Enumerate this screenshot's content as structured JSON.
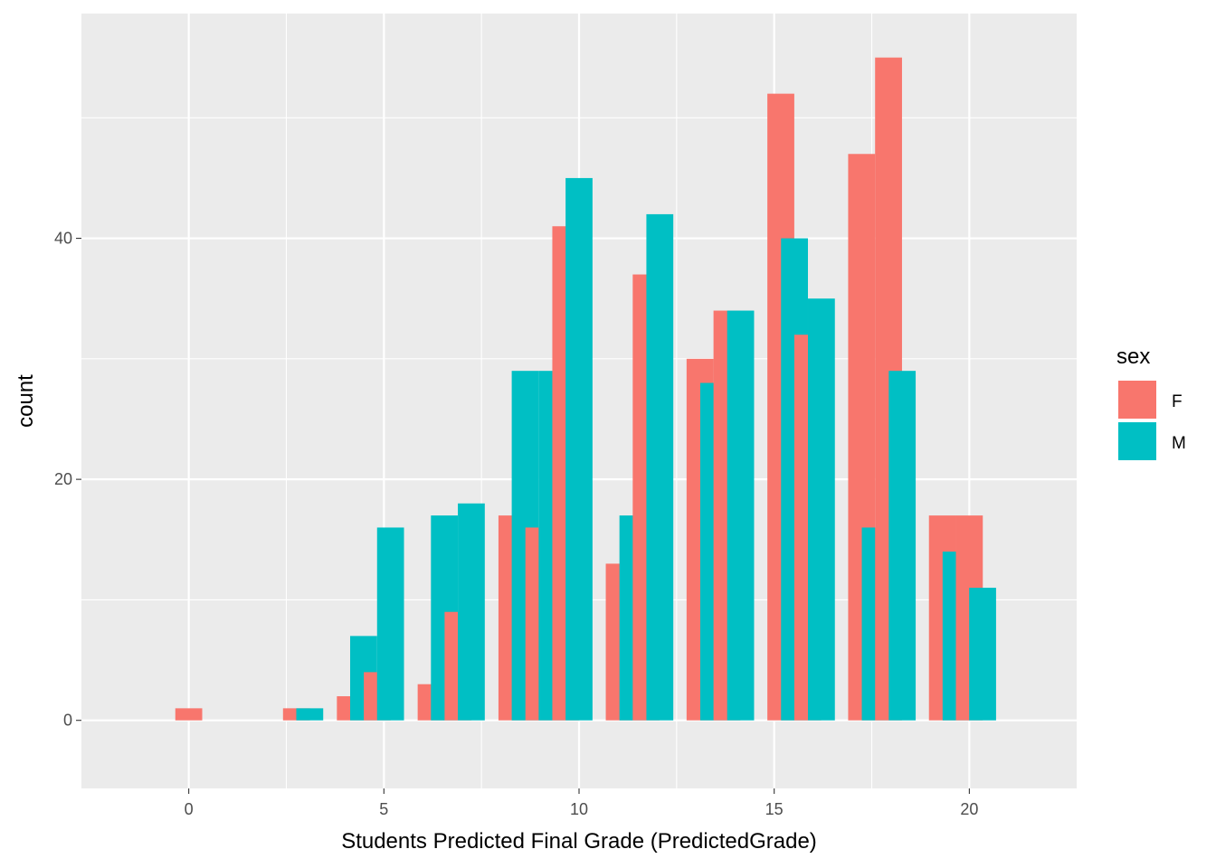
{
  "chart_data": {
    "type": "bar",
    "xlabel": "Students Predicted Final Grade (PredictedGrade)",
    "ylabel": "count",
    "xlim": [
      -2.75,
      22.75
    ],
    "ylim": [
      -5.65,
      58.65
    ],
    "x_ticks": [
      0,
      5,
      10,
      15,
      20
    ],
    "y_ticks": [
      0,
      20,
      40
    ],
    "grid": true,
    "legend": {
      "title": "sex",
      "position": "right",
      "entries": [
        "F",
        "M"
      ]
    },
    "colors": {
      "F": "#F8766D",
      "M": "#00BFC4",
      "panel": "#EBEBEB",
      "grid": "#FFFFFF"
    },
    "bar_width": 0.6897,
    "bars": [
      {
        "x": 0.0,
        "sex": "F",
        "count": 1
      },
      {
        "x": 2.76,
        "sex": "F",
        "count": 1
      },
      {
        "x": 3.1,
        "sex": "M",
        "count": 1
      },
      {
        "x": 4.14,
        "sex": "F",
        "count": 2
      },
      {
        "x": 4.48,
        "sex": "M",
        "count": 7
      },
      {
        "x": 4.83,
        "sex": "F",
        "count": 4
      },
      {
        "x": 5.17,
        "sex": "M",
        "count": 16
      },
      {
        "x": 6.21,
        "sex": "F",
        "count": 3
      },
      {
        "x": 6.55,
        "sex": "M",
        "count": 17
      },
      {
        "x": 6.9,
        "sex": "F",
        "count": 9
      },
      {
        "x": 7.24,
        "sex": "M",
        "count": 18
      },
      {
        "x": 8.28,
        "sex": "F",
        "count": 17
      },
      {
        "x": 8.62,
        "sex": "M",
        "count": 29
      },
      {
        "x": 8.97,
        "sex": "F",
        "count": 16
      },
      {
        "x": 9.31,
        "sex": "M",
        "count": 29
      },
      {
        "x": 9.66,
        "sex": "F",
        "count": 41
      },
      {
        "x": 10.0,
        "sex": "M",
        "count": 45
      },
      {
        "x": 11.03,
        "sex": "F",
        "count": 13
      },
      {
        "x": 11.38,
        "sex": "M",
        "count": 17
      },
      {
        "x": 11.72,
        "sex": "F",
        "count": 37
      },
      {
        "x": 12.07,
        "sex": "M",
        "count": 42
      },
      {
        "x": 13.1,
        "sex": "F",
        "count": 30
      },
      {
        "x": 13.45,
        "sex": "M",
        "count": 28
      },
      {
        "x": 13.79,
        "sex": "F",
        "count": 34
      },
      {
        "x": 14.14,
        "sex": "M",
        "count": 34
      },
      {
        "x": 15.17,
        "sex": "F",
        "count": 52
      },
      {
        "x": 15.52,
        "sex": "M",
        "count": 40
      },
      {
        "x": 15.86,
        "sex": "F",
        "count": 32
      },
      {
        "x": 16.21,
        "sex": "M",
        "count": 35
      },
      {
        "x": 17.24,
        "sex": "F",
        "count": 47
      },
      {
        "x": 17.59,
        "sex": "M",
        "count": 16
      },
      {
        "x": 17.93,
        "sex": "F",
        "count": 55
      },
      {
        "x": 18.28,
        "sex": "M",
        "count": 29
      },
      {
        "x": 19.31,
        "sex": "F",
        "count": 17
      },
      {
        "x": 19.66,
        "sex": "M",
        "count": 14
      },
      {
        "x": 20.0,
        "sex": "F",
        "count": 17
      },
      {
        "x": 20.34,
        "sex": "M",
        "count": 11
      }
    ]
  }
}
